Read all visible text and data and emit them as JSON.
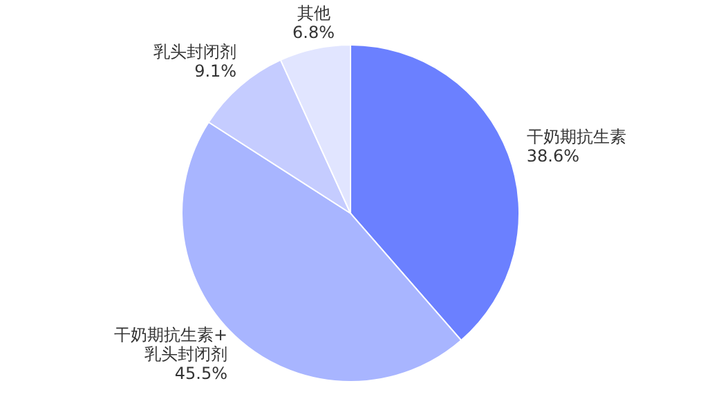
{
  "chart_data": {
    "type": "pie",
    "categories": [
      "干奶期抗生素",
      "干奶期抗生素+乳头封闭剂",
      "乳头封闭剂",
      "其他"
    ],
    "values": [
      38.6,
      45.5,
      9.1,
      6.8
    ],
    "colors": [
      "#6b80ff",
      "#a8b5ff",
      "#c5ccff",
      "#e1e5ff"
    ],
    "value_labels": [
      "38.6%",
      "45.5%",
      "9.1%",
      "6.8%"
    ],
    "legend": false
  }
}
